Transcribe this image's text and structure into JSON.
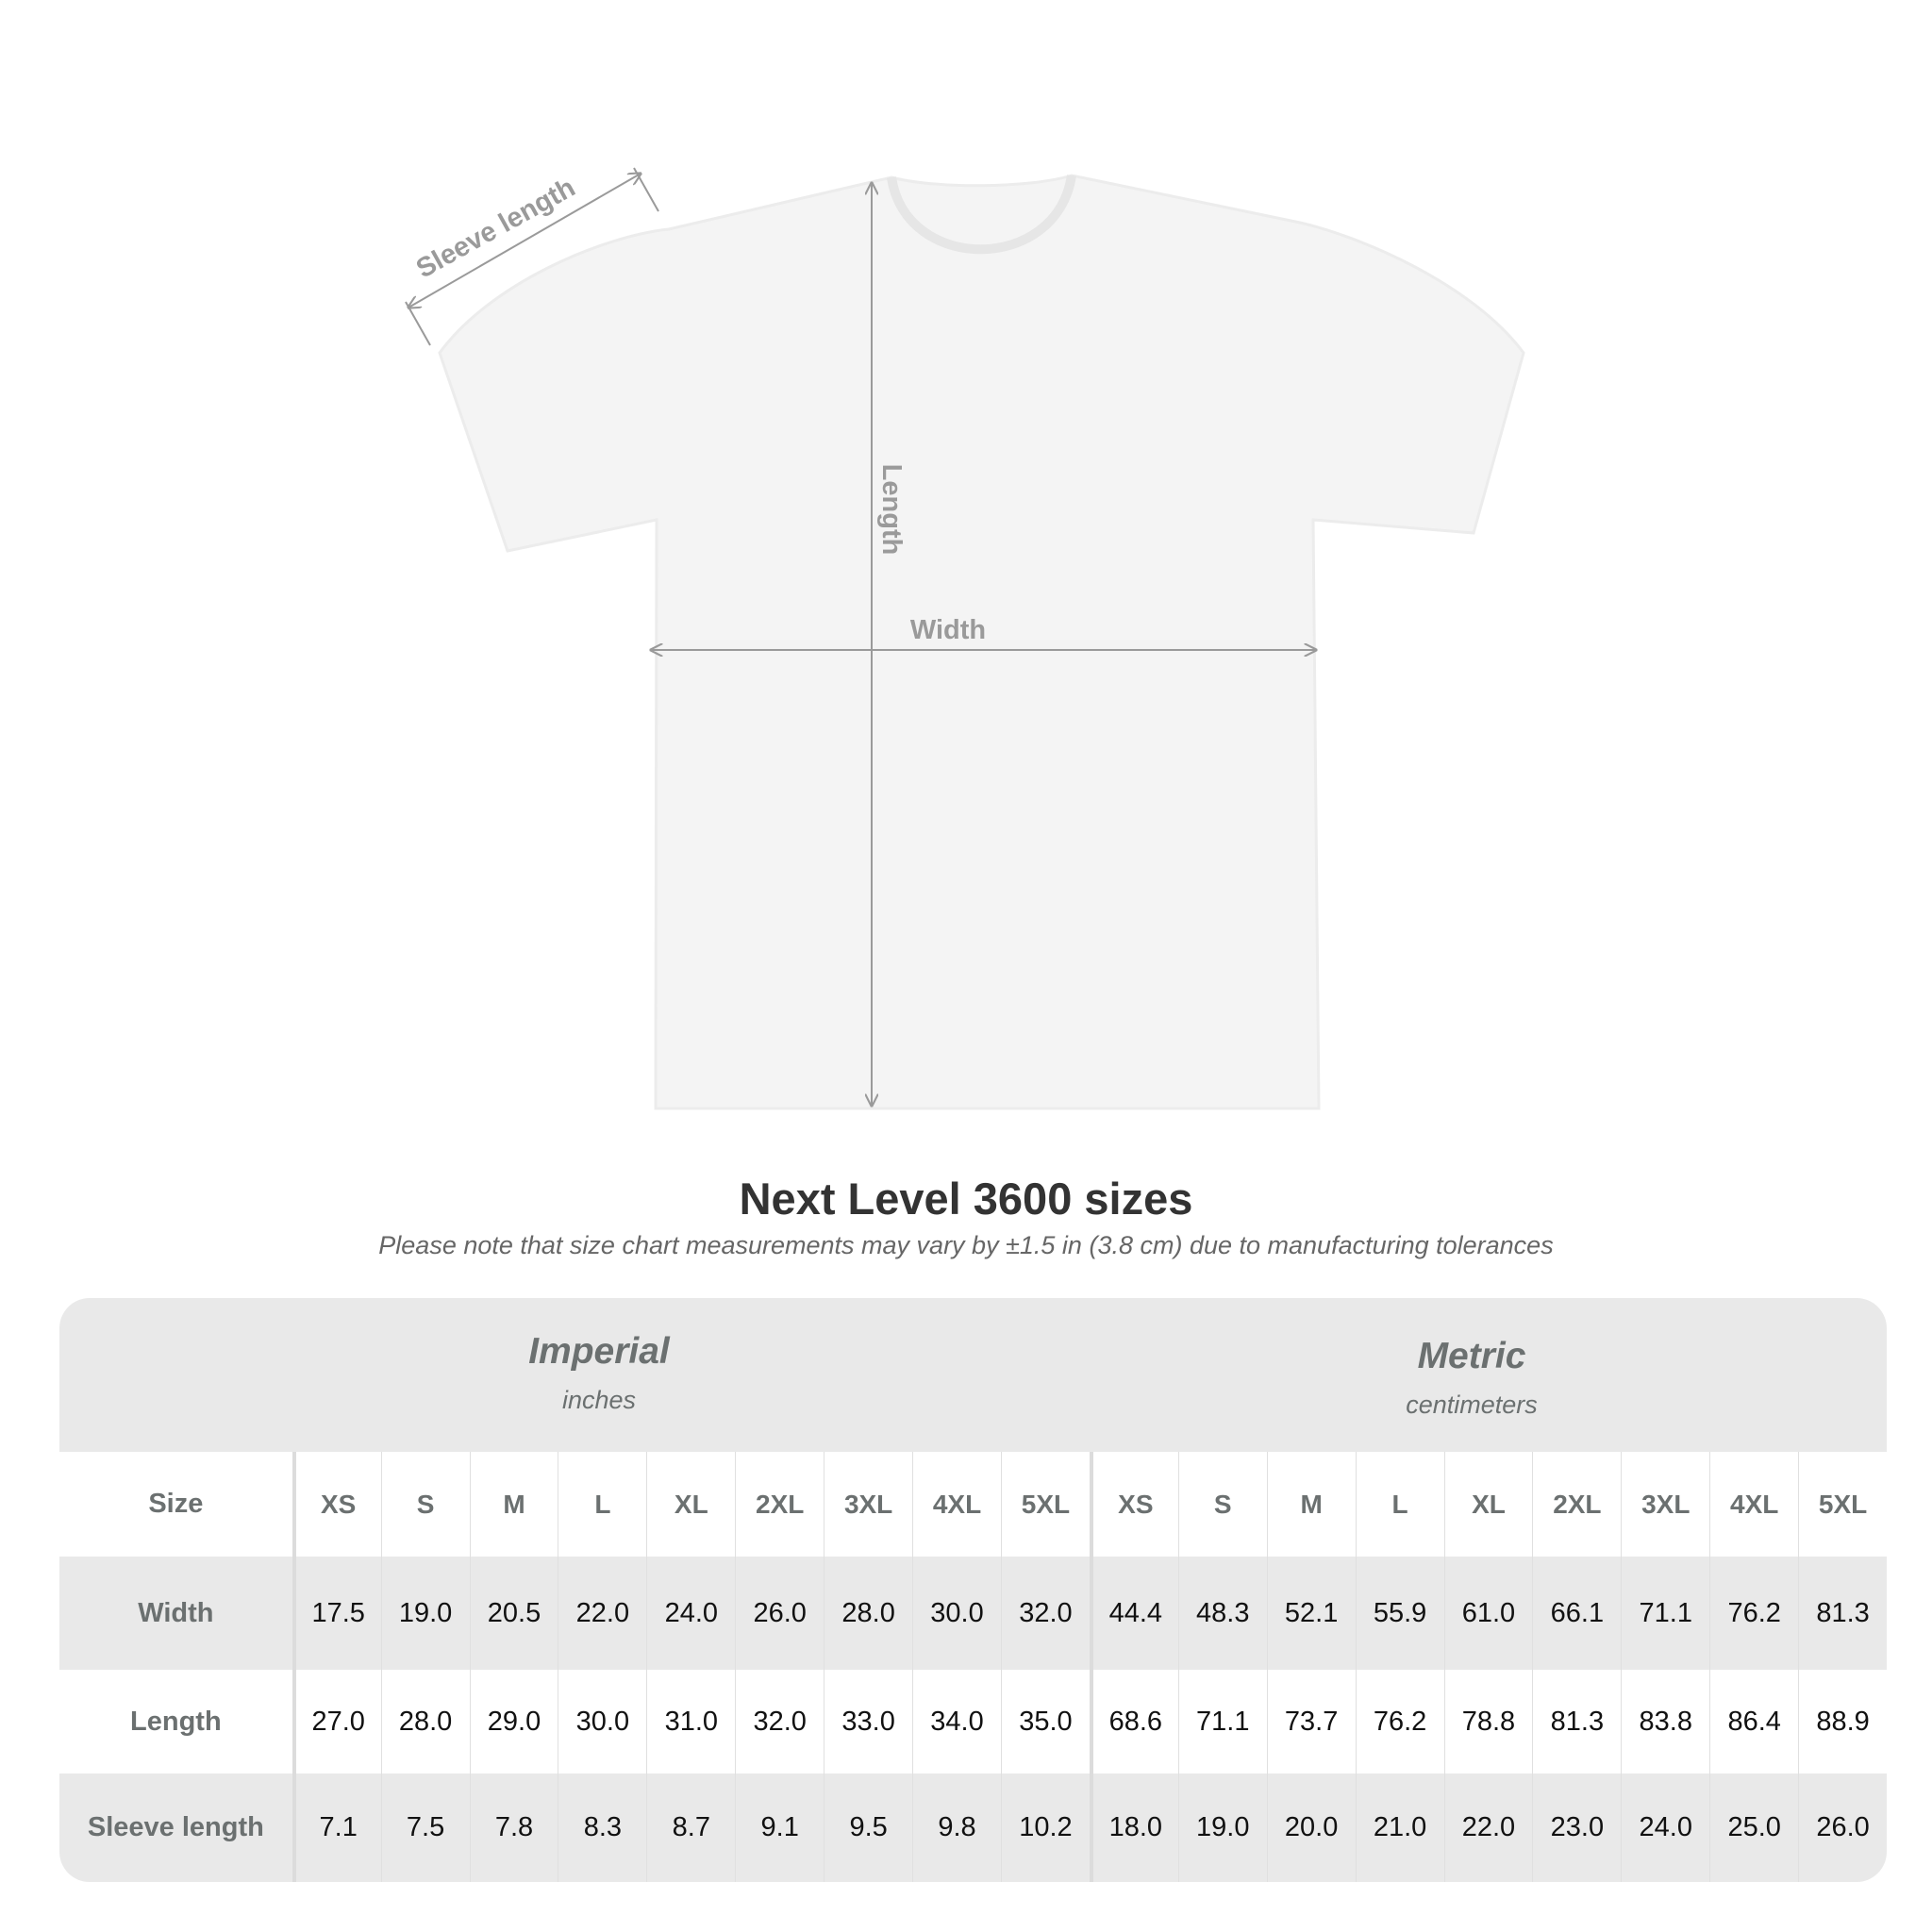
{
  "diagram": {
    "sleeve_label": "Sleeve length",
    "length_label": "Length",
    "width_label": "Width",
    "shirt_color": "#f4f4f4",
    "arrow_color": "#9a9a9a"
  },
  "title": "Next Level 3600 sizes",
  "note": "Please note that size chart measurements may vary by ±1.5 in (3.8 cm) due to manufacturing tolerances",
  "imperial": {
    "name": "Imperial",
    "unit": "inches"
  },
  "metric": {
    "name": "Metric",
    "unit": "centimeters"
  },
  "size_label": "Size",
  "sizes": [
    "XS",
    "S",
    "M",
    "L",
    "XL",
    "2XL",
    "3XL",
    "4XL",
    "5XL"
  ],
  "rows": [
    {
      "label": "Width",
      "imperial": [
        "17.5",
        "19.0",
        "20.5",
        "22.0",
        "24.0",
        "26.0",
        "28.0",
        "30.0",
        "32.0"
      ],
      "metric": [
        "44.4",
        "48.3",
        "52.1",
        "55.9",
        "61.0",
        "66.1",
        "71.1",
        "76.2",
        "81.3"
      ]
    },
    {
      "label": "Length",
      "imperial": [
        "27.0",
        "28.0",
        "29.0",
        "30.0",
        "31.0",
        "32.0",
        "33.0",
        "34.0",
        "35.0"
      ],
      "metric": [
        "68.6",
        "71.1",
        "73.7",
        "76.2",
        "78.8",
        "81.3",
        "83.8",
        "86.4",
        "88.9"
      ]
    },
    {
      "label": "Sleeve length",
      "imperial": [
        "7.1",
        "7.5",
        "7.8",
        "8.3",
        "8.7",
        "9.1",
        "9.5",
        "9.8",
        "10.2"
      ],
      "metric": [
        "18.0",
        "19.0",
        "20.0",
        "21.0",
        "22.0",
        "23.0",
        "24.0",
        "25.0",
        "26.0"
      ]
    }
  ]
}
